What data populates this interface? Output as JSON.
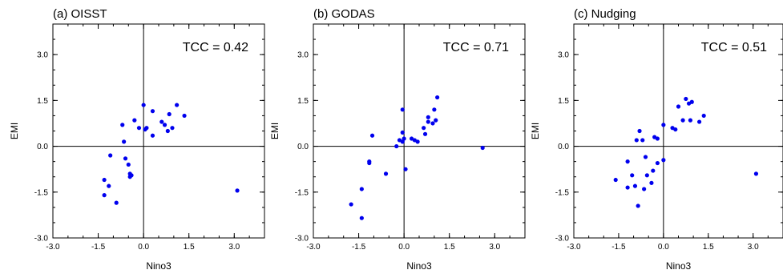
{
  "chart_data": [
    {
      "type": "scatter",
      "title": "(a) OISST",
      "annotation": "TCC = 0.42",
      "xlabel": "Nino3",
      "ylabel": "EMI",
      "xlim": [
        -3.0,
        4.0
      ],
      "ylim": [
        -3.0,
        4.0
      ],
      "xticks": [
        "-3.0",
        "-1.5",
        "0.0",
        "1.5",
        "3.0"
      ],
      "yticks": [
        "-3.0",
        "-1.5",
        "0.0",
        "1.5",
        "3.0"
      ],
      "grid": false,
      "marker_color": "#0000ee",
      "points": [
        [
          -1.3,
          -1.1
        ],
        [
          -1.3,
          -1.6
        ],
        [
          -1.15,
          -1.3
        ],
        [
          -1.1,
          -0.3
        ],
        [
          -0.9,
          -1.85
        ],
        [
          -0.7,
          0.7
        ],
        [
          -0.65,
          0.15
        ],
        [
          -0.6,
          -0.4
        ],
        [
          -0.5,
          -0.6
        ],
        [
          -0.45,
          -0.9
        ],
        [
          -0.45,
          -1.0
        ],
        [
          -0.4,
          -0.95
        ],
        [
          -0.3,
          0.85
        ],
        [
          -0.15,
          0.6
        ],
        [
          0.0,
          1.35
        ],
        [
          0.1,
          0.6
        ],
        [
          0.05,
          0.55
        ],
        [
          0.3,
          1.15
        ],
        [
          0.3,
          0.35
        ],
        [
          0.6,
          0.8
        ],
        [
          0.7,
          0.7
        ],
        [
          0.8,
          0.5
        ],
        [
          0.85,
          1.05
        ],
        [
          0.95,
          0.6
        ],
        [
          1.1,
          1.35
        ],
        [
          1.35,
          1.0
        ],
        [
          3.1,
          -1.45
        ]
      ]
    },
    {
      "type": "scatter",
      "title": "(b) GODAS",
      "annotation": "TCC = 0.71",
      "xlabel": "Nino3",
      "ylabel": "EMI",
      "xlim": [
        -3.0,
        4.0
      ],
      "ylim": [
        -3.0,
        4.0
      ],
      "xticks": [
        "-3.0",
        "-1.5",
        "0.0",
        "1.5",
        "3.0"
      ],
      "yticks": [
        "-3.0",
        "-1.5",
        "0.0",
        "1.5",
        "3.0"
      ],
      "grid": false,
      "marker_color": "#0000ee",
      "points": [
        [
          -1.75,
          -1.9
        ],
        [
          -1.4,
          -2.35
        ],
        [
          -1.4,
          -1.4
        ],
        [
          -1.15,
          -0.5
        ],
        [
          -1.15,
          -0.55
        ],
        [
          -1.05,
          0.35
        ],
        [
          -0.6,
          -0.9
        ],
        [
          -0.25,
          0.0
        ],
        [
          -0.15,
          0.2
        ],
        [
          -0.05,
          0.15
        ],
        [
          -0.05,
          1.2
        ],
        [
          -0.05,
          0.45
        ],
        [
          0.0,
          0.25
        ],
        [
          0.05,
          -0.75
        ],
        [
          0.25,
          0.25
        ],
        [
          0.35,
          0.2
        ],
        [
          0.45,
          0.15
        ],
        [
          0.65,
          0.6
        ],
        [
          0.7,
          0.4
        ],
        [
          0.8,
          0.95
        ],
        [
          0.8,
          0.8
        ],
        [
          0.95,
          0.75
        ],
        [
          1.0,
          1.2
        ],
        [
          1.05,
          0.85
        ],
        [
          1.1,
          1.6
        ],
        [
          2.6,
          -0.05
        ]
      ]
    },
    {
      "type": "scatter",
      "title": "(c) Nudging",
      "annotation": "TCC = 0.51",
      "xlabel": "Nino3",
      "ylabel": "EMI",
      "xlim": [
        -3.0,
        4.0
      ],
      "ylim": [
        -3.0,
        4.0
      ],
      "xticks": [
        "-3.0",
        "-1.5",
        "0.0",
        "1.5",
        "3.0"
      ],
      "yticks": [
        "-3.0",
        "-1.5",
        "0.0",
        "1.5",
        "3.0"
      ],
      "grid": false,
      "marker_color": "#0000ee",
      "points": [
        [
          -1.6,
          -1.1
        ],
        [
          -1.2,
          -1.35
        ],
        [
          -1.2,
          -0.5
        ],
        [
          -1.05,
          -0.95
        ],
        [
          -0.95,
          -1.3
        ],
        [
          -0.9,
          0.2
        ],
        [
          -0.85,
          -1.95
        ],
        [
          -0.8,
          0.5
        ],
        [
          -0.7,
          0.2
        ],
        [
          -0.65,
          -1.4
        ],
        [
          -0.6,
          -0.35
        ],
        [
          -0.55,
          -0.95
        ],
        [
          -0.4,
          -1.2
        ],
        [
          -0.35,
          -0.8
        ],
        [
          -0.3,
          0.3
        ],
        [
          -0.2,
          0.25
        ],
        [
          -0.2,
          -0.55
        ],
        [
          0.0,
          0.7
        ],
        [
          0.0,
          -0.45
        ],
        [
          0.3,
          0.6
        ],
        [
          0.4,
          0.55
        ],
        [
          0.5,
          1.3
        ],
        [
          0.65,
          0.85
        ],
        [
          0.75,
          1.55
        ],
        [
          0.85,
          1.4
        ],
        [
          0.9,
          0.85
        ],
        [
          0.95,
          1.45
        ],
        [
          1.2,
          0.8
        ],
        [
          1.35,
          1.0
        ],
        [
          3.1,
          -0.9
        ]
      ]
    }
  ]
}
